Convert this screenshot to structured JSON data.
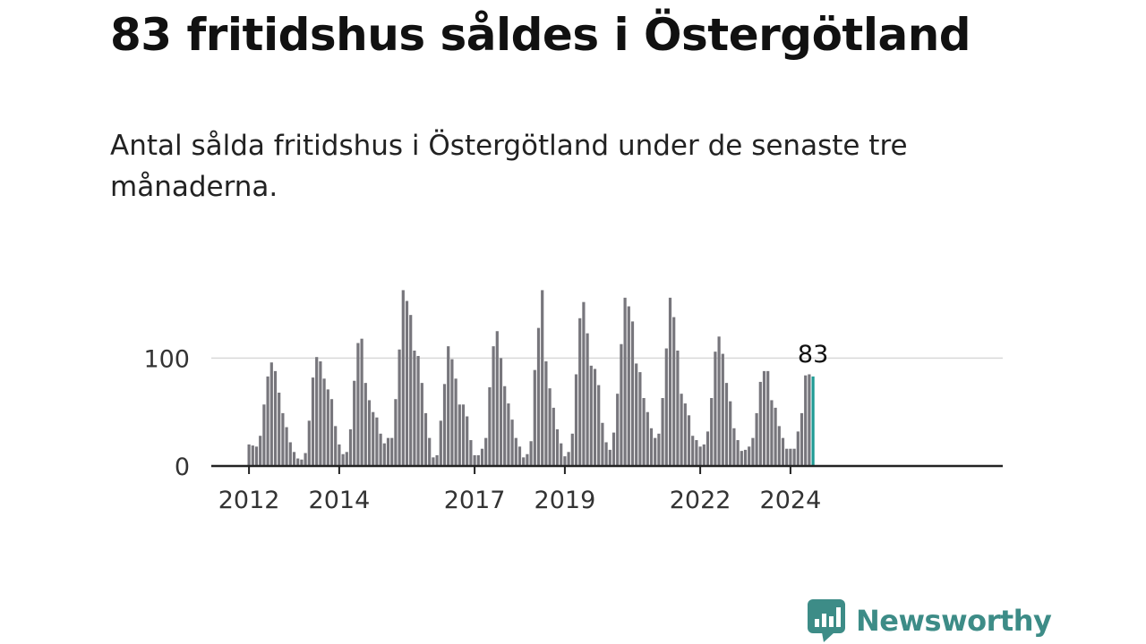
{
  "header": {
    "title": "83 fritidshus såldes i Östergötland",
    "subtitle": "Antal sålda fritidshus i Östergötland under de senaste tre månaderna."
  },
  "brand": {
    "name": "Newsworthy",
    "icon": "newsworthy-logo-icon"
  },
  "colors": {
    "bar": "#77767c",
    "highlight": "#1f9b95",
    "axis": "#222222",
    "grid": "#d8d8d8",
    "brand": "#3d8c87"
  },
  "chart_data": {
    "type": "bar",
    "x_start": "2012-01",
    "x_end": "2024-08",
    "x_ticks": [
      "2012",
      "2014",
      "2017",
      "2019",
      "2022",
      "2024"
    ],
    "y_ticks": [
      0,
      100
    ],
    "ylim": [
      0,
      165
    ],
    "grid": true,
    "highlight_last": true,
    "last_label": "83",
    "values": [
      20,
      19,
      18,
      28,
      57,
      83,
      96,
      88,
      68,
      49,
      36,
      22,
      13,
      7,
      6,
      12,
      42,
      82,
      101,
      97,
      81,
      71,
      62,
      37,
      20,
      11,
      13,
      34,
      79,
      114,
      118,
      77,
      61,
      50,
      45,
      30,
      21,
      26,
      26,
      62,
      108,
      163,
      153,
      140,
      107,
      102,
      77,
      49,
      26,
      8,
      10,
      42,
      76,
      111,
      99,
      81,
      57,
      57,
      46,
      24,
      10,
      10,
      16,
      26,
      73,
      111,
      125,
      100,
      74,
      58,
      43,
      26,
      18,
      8,
      11,
      23,
      89,
      128,
      163,
      97,
      72,
      54,
      34,
      21,
      9,
      13,
      30,
      85,
      137,
      152,
      123,
      93,
      90,
      75,
      40,
      22,
      15,
      31,
      67,
      113,
      156,
      148,
      134,
      95,
      87,
      63,
      50,
      35,
      26,
      30,
      63,
      109,
      156,
      138,
      107,
      67,
      58,
      47,
      28,
      24,
      18,
      20,
      32,
      63,
      106,
      120,
      104,
      77,
      60,
      35,
      24,
      14,
      15,
      18,
      26,
      49,
      78,
      88,
      88,
      61,
      54,
      37,
      26,
      16,
      16,
      16,
      32,
      49,
      84,
      85,
      83
    ]
  }
}
